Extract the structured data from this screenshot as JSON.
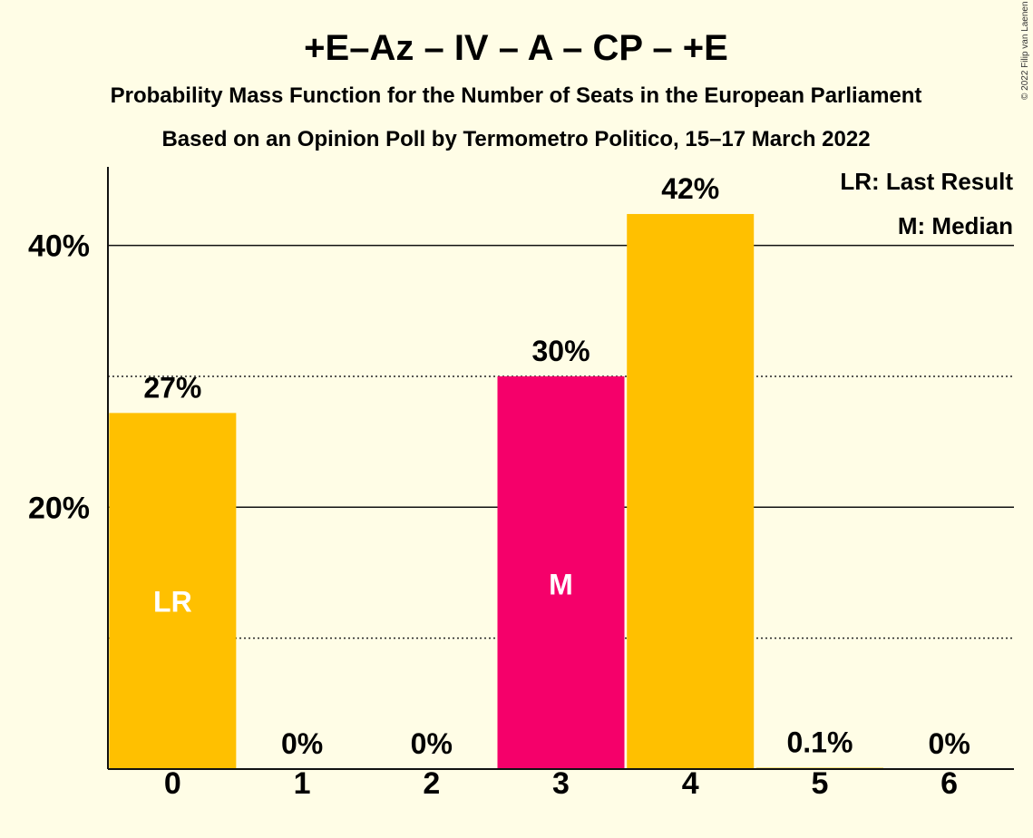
{
  "chart_data": {
    "type": "bar",
    "title": "+E–Az – IV – A – CP – +E",
    "subtitle": "Probability Mass Function for the Number of Seats in the European Parliament",
    "subtitle2": "Based on an Opinion Poll by Termometro Politico, 15–17 March 2022",
    "categories": [
      "0",
      "1",
      "2",
      "3",
      "4",
      "5",
      "6"
    ],
    "values": [
      27.2,
      0,
      0,
      30.0,
      42.4,
      0.1,
      0
    ],
    "value_labels": [
      "27%",
      "0%",
      "0%",
      "30%",
      "42%",
      "0.1%",
      "0%"
    ],
    "bar_colors": [
      "#FFC000",
      "#FFC000",
      "#FFC000",
      "#F5006A",
      "#FFC000",
      "#FFC000",
      "#FFC000"
    ],
    "bar_inner_labels": [
      "LR",
      "",
      "",
      "M",
      "",
      "",
      ""
    ],
    "ylim": [
      0,
      46
    ],
    "y_ticks": [
      20,
      40
    ],
    "y_tick_labels": [
      "20%",
      "40%"
    ],
    "minor_gridlines": [
      10,
      30
    ],
    "legend": [
      "LR: Last Result",
      "M: Median"
    ],
    "legend_position": "top-right",
    "copyright": "© 2022 Filip van Laenen"
  }
}
